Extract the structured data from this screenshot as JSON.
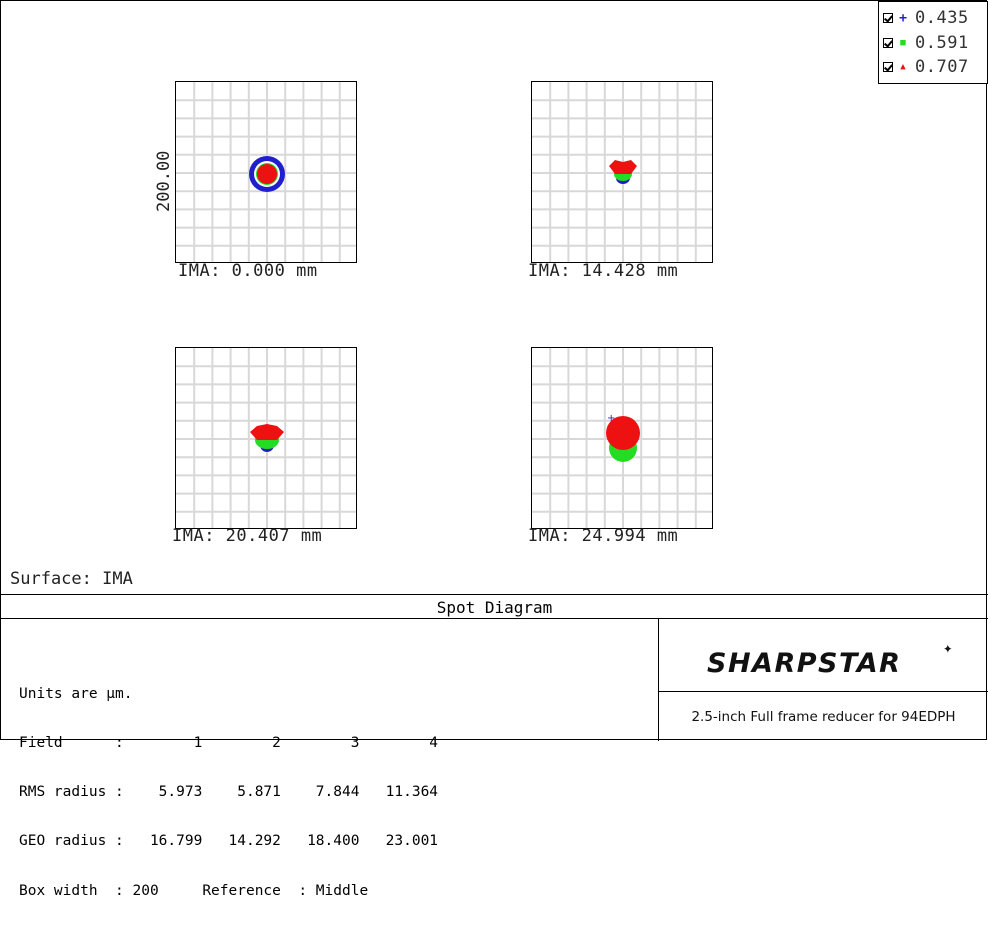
{
  "legend": {
    "items": [
      {
        "value": "0.435",
        "symbol": "+",
        "color": "#1f1fcc",
        "checked": true
      },
      {
        "value": "0.591",
        "symbol": "■",
        "color": "#22dd22",
        "checked": true
      },
      {
        "value": "0.707",
        "symbol": "▲",
        "color": "#ee1111",
        "checked": true
      }
    ]
  },
  "scale_label": "200.00",
  "fields": [
    {
      "label": "IMA: 0.000 mm"
    },
    {
      "label": "IMA: 14.428 mm"
    },
    {
      "label": "IMA: 20.407 mm"
    },
    {
      "label": "IMA: 24.994 mm"
    }
  ],
  "surface_label": "Surface: IMA",
  "title": "Spot Diagram",
  "info": {
    "line1": "Units are µm.",
    "line2": "Field      :        1        2        3        4",
    "line3": "RMS radius :    5.973    5.871    7.844   11.364",
    "line4": "GEO radius :   16.799   14.292   18.400   23.001",
    "line5": "Box width  : 200     Reference  : Middle"
  },
  "chart_data": {
    "type": "scatter",
    "title": "Spot Diagram",
    "surface": "IMA",
    "units": "µm",
    "box_width": 200,
    "reference": "Middle",
    "wavelengths": [
      "0.435",
      "0.591",
      "0.707"
    ],
    "fields": [
      {
        "field": 1,
        "ima_mm": 0.0,
        "rms_radius": 5.973,
        "geo_radius": 16.799
      },
      {
        "field": 2,
        "ima_mm": 14.428,
        "rms_radius": 5.871,
        "geo_radius": 14.292
      },
      {
        "field": 3,
        "ima_mm": 20.407,
        "rms_radius": 7.844,
        "geo_radius": 18.4
      },
      {
        "field": 4,
        "ima_mm": 24.994,
        "rms_radius": 11.364,
        "geo_radius": 23.001
      }
    ]
  },
  "brand": {
    "logo": "SHARPSTAR",
    "caption": "2.5-inch Full frame reducer for 94EDPH"
  }
}
